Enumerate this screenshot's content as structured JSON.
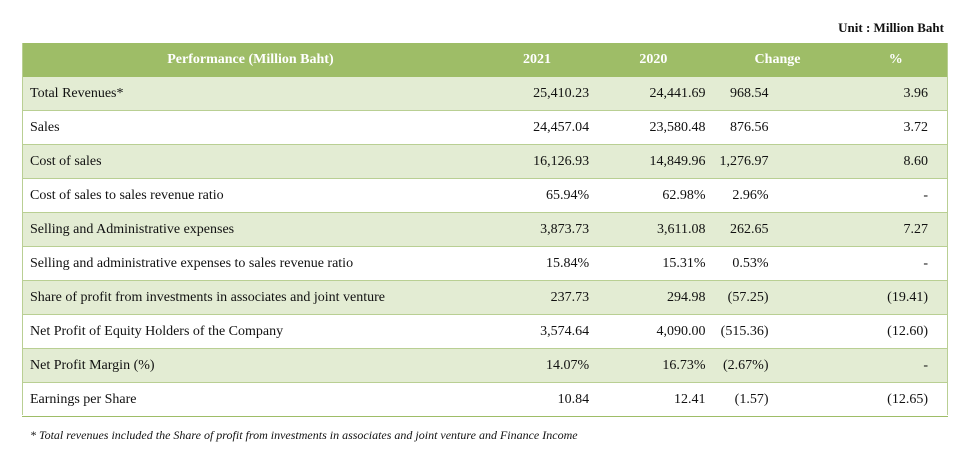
{
  "unit_label": "Unit : Million Baht",
  "headers": [
    "Performance (Million Baht)",
    "2021",
    "2020",
    "Change",
    "%"
  ],
  "rows": [
    {
      "label": "Total Revenues*",
      "y2021": "25,410.23",
      "y2020": "24,441.69",
      "change": "968.54",
      "pct": "3.96"
    },
    {
      "label": "Sales",
      "y2021": "24,457.04",
      "y2020": "23,580.48",
      "change": "876.56",
      "pct": "3.72"
    },
    {
      "label": "Cost of sales",
      "y2021": "16,126.93",
      "y2020": "14,849.96",
      "change": "1,276.97",
      "pct": "8.60"
    },
    {
      "label": "Cost of sales to sales revenue ratio",
      "y2021": "65.94%",
      "y2020": "62.98%",
      "change": "2.96%",
      "pct": "-"
    },
    {
      "label": "Selling and  Administrative expenses",
      "y2021": "3,873.73",
      "y2020": "3,611.08",
      "change": "262.65",
      "pct": "7.27"
    },
    {
      "label": "Selling and administrative expenses to sales revenue ratio",
      "y2021": "15.84%",
      "y2020": "15.31%",
      "change": "0.53%",
      "pct": "-"
    },
    {
      "label": "Share of profit from investments in associates and  joint venture",
      "y2021": "237.73",
      "y2020": "294.98",
      "change": "(57.25)",
      "pct": "(19.41)"
    },
    {
      "label": "Net Profit of Equity Holders of the Company",
      "y2021": "3,574.64",
      "y2020": "4,090.00",
      "change": "(515.36)",
      "pct": "(12.60)"
    },
    {
      "label": "Net Profit Margin  (%)",
      "y2021": "14.07%",
      "y2020": "16.73%",
      "change": "(2.67%)",
      "pct": "-"
    },
    {
      "label": "Earnings per Share",
      "y2021": "10.84",
      "y2020": "12.41",
      "change": "(1.57)",
      "pct": "(12.65)"
    }
  ],
  "footnote": "* Total revenues included the Share of profit from investments in associates and joint venture and Finance Income",
  "colors": {
    "header_bg": "#9ebd67",
    "stripe_bg": "#e3ecd3",
    "border": "#b9cf93"
  }
}
